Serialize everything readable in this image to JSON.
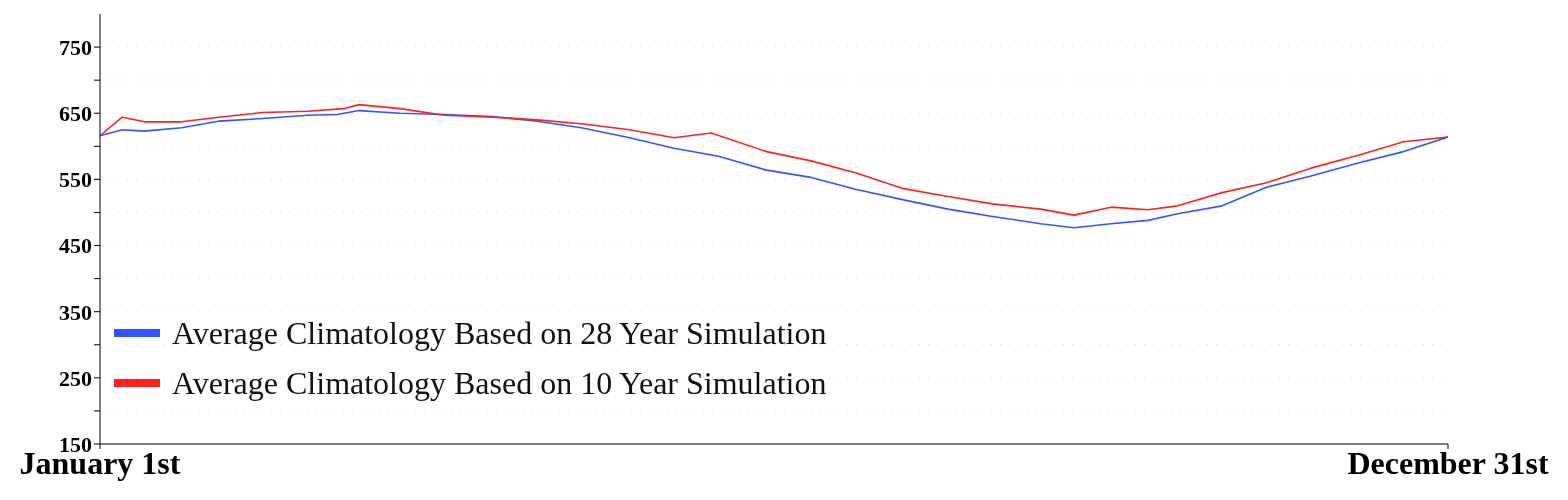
{
  "chart_data": {
    "type": "line",
    "xlim": [
      "--01-01",
      "--12-31"
    ],
    "xticks": [
      {
        "value": "--01-01",
        "label": "January 1st"
      },
      {
        "value": "--12-31",
        "label": "December 31st"
      }
    ],
    "ylim": [
      150,
      800
    ],
    "yticks": [
      150,
      {
        "value": 200,
        "label": null
      },
      250,
      {
        "value": 300,
        "label": null
      },
      350,
      {
        "value": 400,
        "label": null
      },
      450,
      {
        "value": 500,
        "label": null
      },
      550,
      {
        "value": 600,
        "label": null
      },
      650,
      {
        "value": 700,
        "label": null
      },
      750
    ],
    "grid": "y",
    "legend": "bottom left",
    "marker": "none",
    "line_style": "solid",
    "series": [
      {
        "name": "Average Climatology Based on 28 Year Simulation",
        "color": "#3355ff",
        "x": [
          "--01-01",
          "--01-07",
          "--01-13",
          "--01-23",
          "--02-02",
          "--02-14",
          "--02-26",
          "--03-06",
          "--03-12",
          "--03-23",
          "--04-04",
          "--04-17",
          "--04-29",
          "--05-11",
          "--05-24",
          "--06-05",
          "--06-17",
          "--06-30",
          "--07-12",
          "--07-24",
          "--08-06",
          "--08-18",
          "--08-30",
          "--09-12",
          "--09-21",
          "--10-01",
          "--10-11",
          "--10-19",
          "--10-31",
          "--11-12",
          "--11-24",
          "--12-07",
          "--12-19",
          "--12-31"
        ],
        "values": [
          616,
          625,
          623,
          628,
          638,
          642,
          647,
          648,
          654,
          650,
          648,
          645,
          638,
          628,
          613,
          597,
          585,
          564,
          553,
          535,
          519,
          505,
          494,
          483,
          477,
          483,
          488,
          498,
          510,
          538,
          555,
          575,
          592,
          614
        ]
      },
      {
        "name": "Average Climatology Based on 10 Year Simulation",
        "color": "#ff2020",
        "x": [
          "--01-01",
          "--01-07",
          "--01-13",
          "--01-23",
          "--02-02",
          "--02-14",
          "--02-26",
          "--03-08",
          "--03-12",
          "--03-23",
          "--04-04",
          "--04-17",
          "--04-29",
          "--05-11",
          "--05-24",
          "--06-05",
          "--06-15",
          "--06-30",
          "--07-12",
          "--07-24",
          "--08-06",
          "--08-18",
          "--08-30",
          "--09-12",
          "--09-21",
          "--10-01",
          "--10-11",
          "--10-19",
          "--10-31",
          "--11-12",
          "--11-24",
          "--12-07",
          "--12-19",
          "--12-31"
        ],
        "values": [
          616,
          644,
          637,
          637,
          644,
          651,
          653,
          657,
          663,
          657,
          647,
          644,
          640,
          634,
          625,
          613,
          620,
          592,
          578,
          560,
          536,
          524,
          513,
          505,
          496,
          508,
          504,
          510,
          530,
          545,
          567,
          587,
          607,
          614
        ]
      }
    ]
  }
}
